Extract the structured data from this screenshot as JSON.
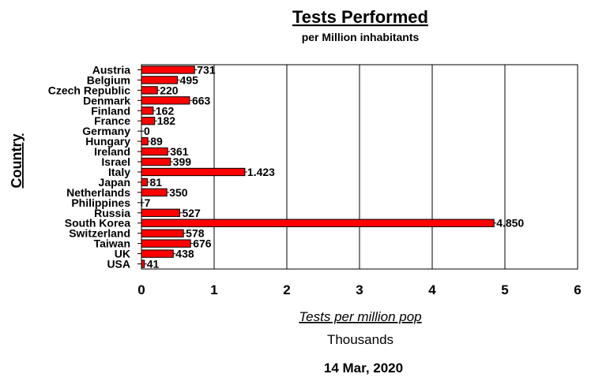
{
  "chart_data": {
    "type": "bar",
    "orientation": "horizontal",
    "title": "Tests Performed",
    "subtitle": "per Million inhabitants",
    "ylabel": "Country",
    "xlabel": "Tests per million pop",
    "x_unit": "Thousands",
    "date": "14 Mar, 2020",
    "xlim": [
      0,
      6
    ],
    "x_ticks": [
      "0",
      "1",
      "2",
      "3",
      "4",
      "5",
      "6"
    ],
    "grid": "vertical",
    "bar_color": "#ff0000",
    "categories": [
      "Austria",
      "Belgium",
      "Czech Republic",
      "Denmark",
      "Finland",
      "France",
      "Germany",
      "Hungary",
      "Ireland",
      "Israel",
      "Italy",
      "Japan",
      "Netherlands",
      "Philippines",
      "Russia",
      "South Korea",
      "Switzerland",
      "Taiwan",
      "UK",
      "USA"
    ],
    "values": [
      731,
      495,
      220,
      663,
      162,
      182,
      0,
      89,
      361,
      399,
      1423,
      81,
      350,
      7,
      527,
      4850,
      578,
      676,
      438,
      41
    ],
    "value_labels": [
      "731",
      "495",
      "220",
      "663",
      "162",
      "182",
      "0",
      "89",
      "361",
      "399",
      "1.423",
      "81",
      "350",
      "7",
      "527",
      "4.850",
      "578",
      "676",
      "438",
      "41"
    ]
  }
}
